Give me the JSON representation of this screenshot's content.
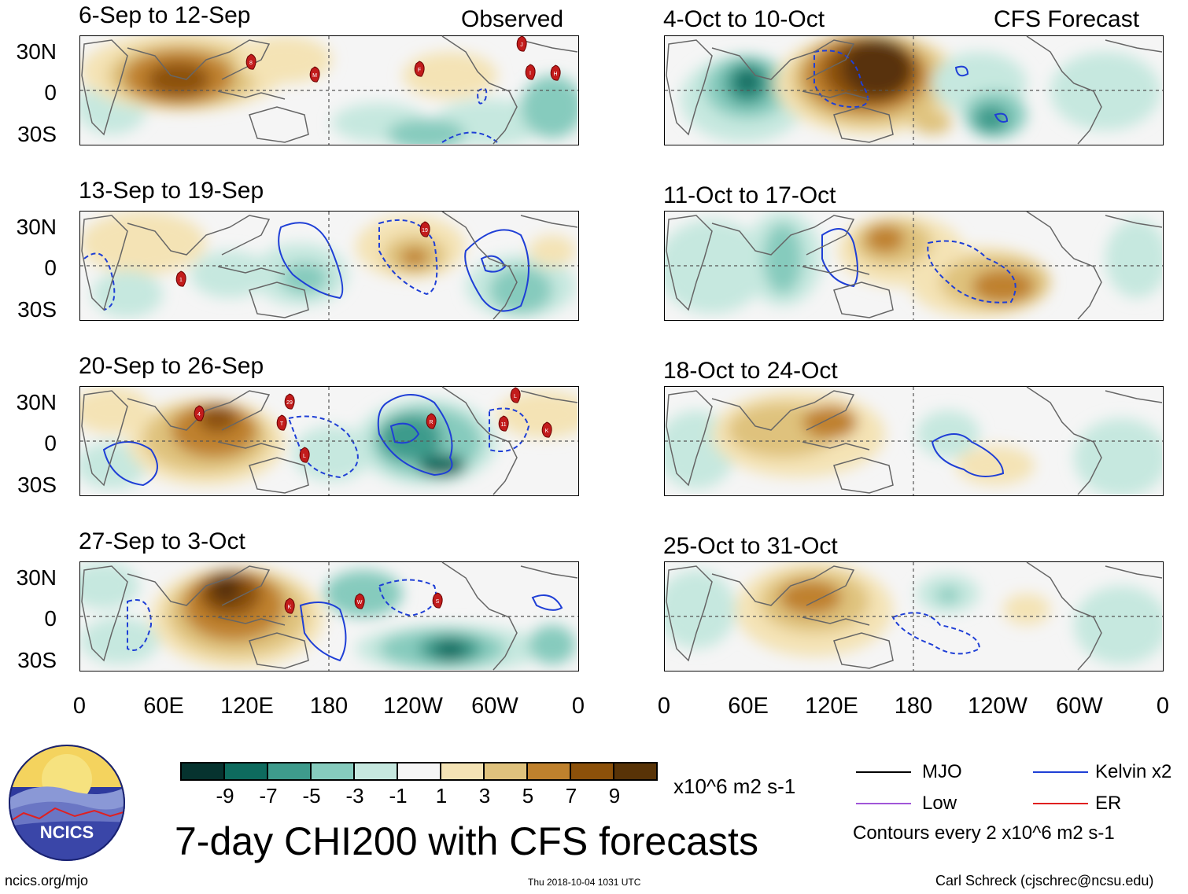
{
  "headers": {
    "observed": "Observed",
    "forecast": "CFS Forecast"
  },
  "panels": {
    "obs": [
      {
        "title": "6-Sep to 12-Sep"
      },
      {
        "title": "13-Sep to 19-Sep"
      },
      {
        "title": "20-Sep to 26-Sep"
      },
      {
        "title": "27-Sep to 3-Oct"
      }
    ],
    "fcst": [
      {
        "title": "4-Oct to 10-Oct"
      },
      {
        "title": "11-Oct to 17-Oct"
      },
      {
        "title": "18-Oct to 24-Oct"
      },
      {
        "title": "25-Oct to 31-Oct"
      }
    ]
  },
  "y_axis": [
    "30N",
    "0",
    "30S"
  ],
  "x_axis": [
    "0",
    "60E",
    "120E",
    "180",
    "120W",
    "60W",
    "0"
  ],
  "storms": {
    "p0": [
      "8",
      "M",
      "F",
      "J",
      "I",
      "H"
    ],
    "p1": [
      "1",
      "19"
    ],
    "p2": [
      "4",
      "29",
      "T",
      "L",
      "R",
      "L",
      "11",
      "K"
    ],
    "p3": [
      "K",
      "W",
      "S"
    ]
  },
  "colorbar": {
    "colors": [
      "#06332f",
      "#0e6b5e",
      "#3e9b8c",
      "#86cbbd",
      "#c6e8df",
      "#f5f5f5",
      "#f4e3b5",
      "#dfc27d",
      "#bf812d",
      "#8c510a",
      "#583307"
    ],
    "labels": [
      "-9",
      "-7",
      "-5",
      "-3",
      "-1",
      "1",
      "3",
      "5",
      "7",
      "9"
    ],
    "units": "x10^6 m2 s-1"
  },
  "legend": {
    "items": [
      {
        "label": "MJO",
        "color": "#000000"
      },
      {
        "label": "Kelvin x2",
        "color": "#1f3fd6"
      },
      {
        "label": "Low",
        "color": "#a056d8"
      },
      {
        "label": "ER",
        "color": "#e02020"
      }
    ],
    "contours_note": "Contours every 2 x10^6 m2 s-1"
  },
  "logo": {
    "text": "NCICS"
  },
  "main_title": "7-day CHI200 with CFS forecasts",
  "footer": {
    "url": "ncics.org/mjo",
    "timestamp": "Thu 2018-10-04 1031 UTC",
    "credit": "Carl Schreck (cjschrec@ncsu.edu)"
  }
}
